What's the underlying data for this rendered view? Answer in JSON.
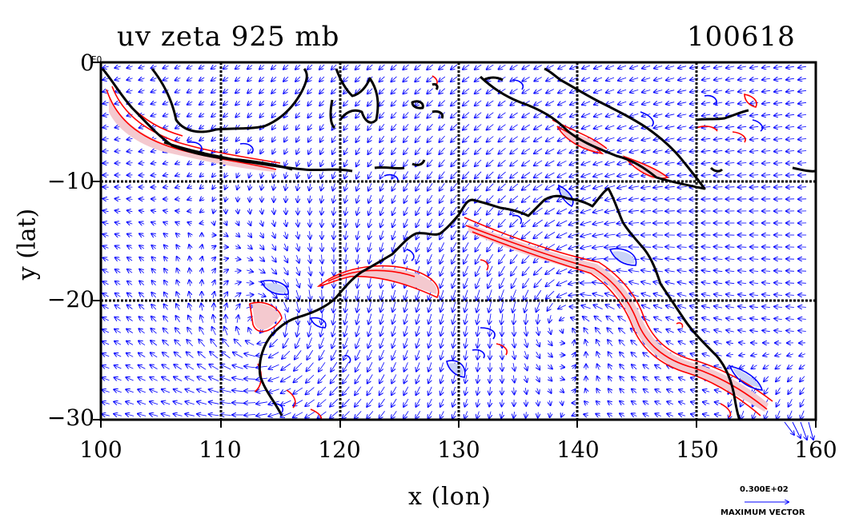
{
  "title": {
    "left": "uv zeta 925 mb",
    "right": "100618"
  },
  "corner_mark": "EQ",
  "axes": {
    "xlabel": "x (lon)",
    "ylabel": "y (lat)",
    "xticks": [
      "100",
      "110",
      "120",
      "130",
      "140",
      "150",
      "160"
    ],
    "yticks": [
      "0",
      "−10",
      "−20",
      "−30"
    ],
    "xlim": [
      100,
      160
    ],
    "ylim": [
      -30,
      0
    ]
  },
  "legend": {
    "value": "0.300E+02",
    "name": "MAXIMUM VECTOR"
  },
  "colors": {
    "wind_vectors": "#0000ff",
    "positive_vorticity": "#ff0000",
    "negative_vorticity": "#0000ff",
    "coastline": "#000000",
    "positive_fill": "#f4c9cf"
  }
}
